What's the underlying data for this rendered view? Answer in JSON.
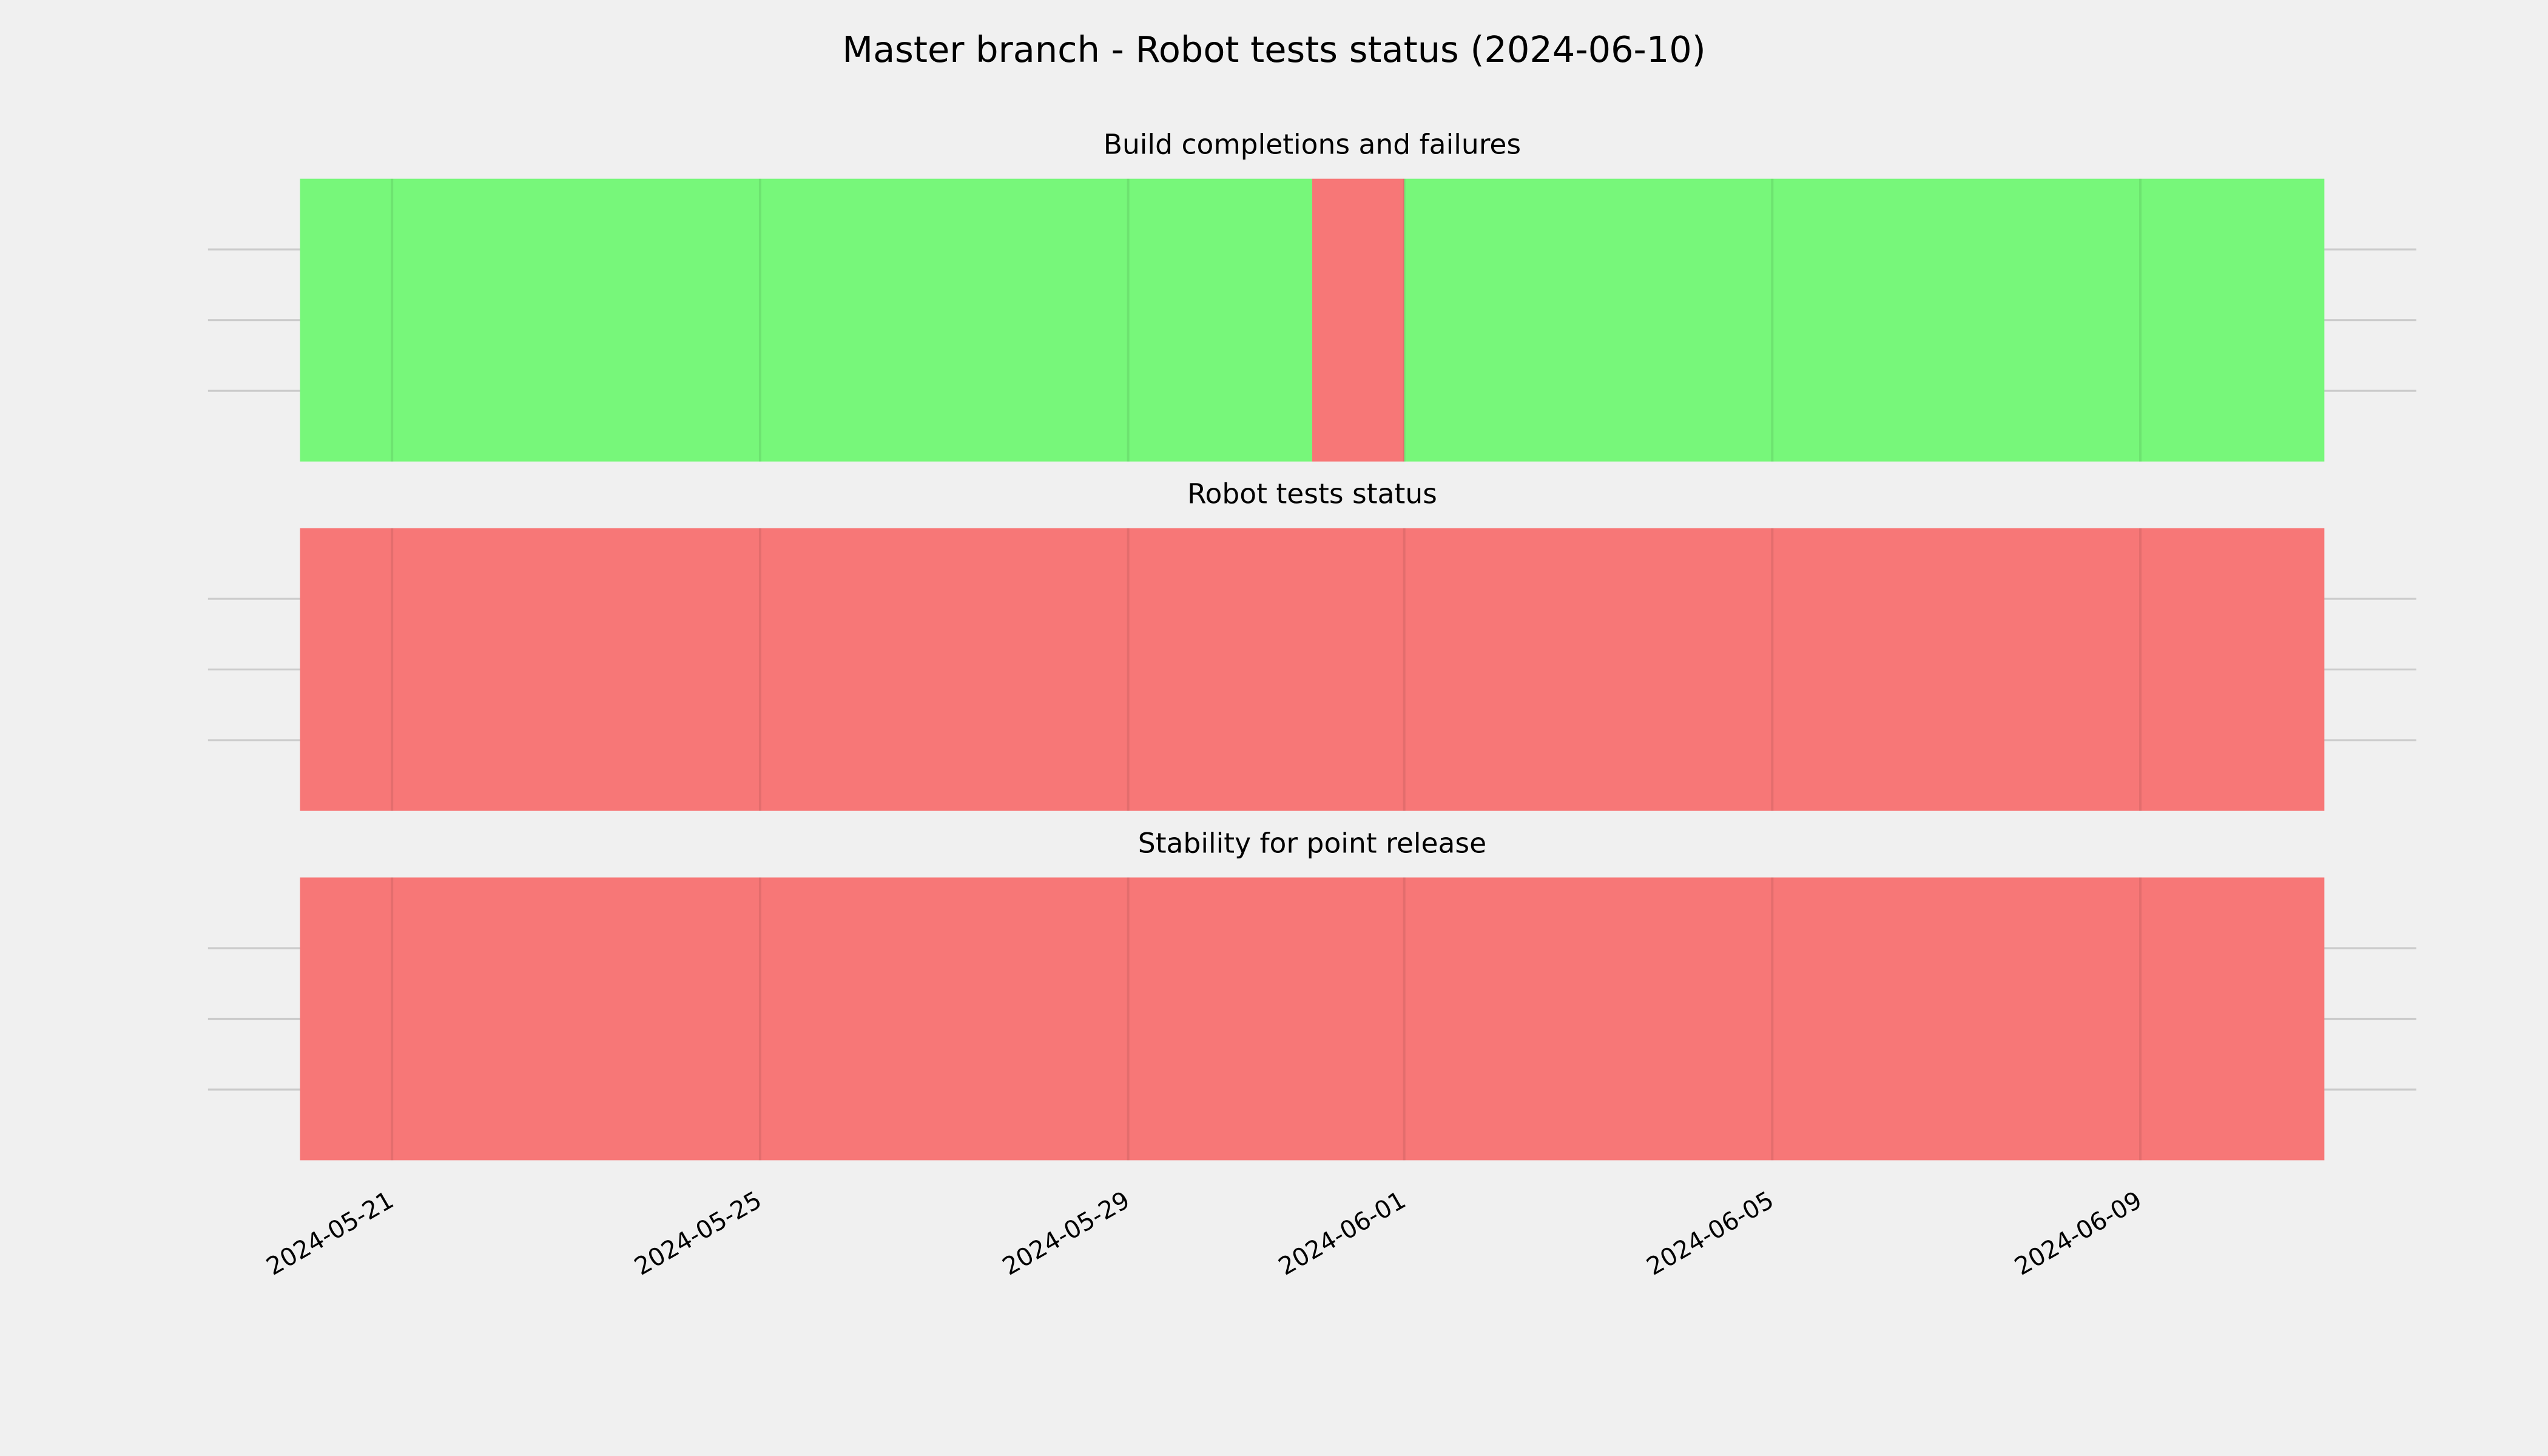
{
  "chart_data": {
    "type": "timeline",
    "title": "Master branch - Robot tests status (2024-06-10)",
    "xlim": [
      "2024-05-19",
      "2024-06-12"
    ],
    "xticks": [
      "2024-05-21",
      "2024-05-25",
      "2024-05-29",
      "2024-06-01",
      "2024-06-05",
      "2024-06-09"
    ],
    "ylim": [
      0,
      1
    ],
    "yticks": [
      0.25,
      0.5,
      0.75
    ],
    "grid": true,
    "panels": [
      {
        "title": "Build completions and failures",
        "segments": [
          {
            "start": "2024-05-20",
            "end": "2024-05-31",
            "color": "#77f77a"
          },
          {
            "start": "2024-05-31",
            "end": "2024-06-01",
            "color": "#f77777"
          },
          {
            "start": "2024-06-01",
            "end": "2024-06-11",
            "color": "#77f77a"
          }
        ]
      },
      {
        "title": "Robot tests status",
        "segments": [
          {
            "start": "2024-05-20",
            "end": "2024-06-11",
            "color": "#f77777"
          }
        ]
      },
      {
        "title": "Stability for point release",
        "segments": [
          {
            "start": "2024-05-20",
            "end": "2024-06-11",
            "color": "#f77777"
          }
        ]
      }
    ]
  }
}
